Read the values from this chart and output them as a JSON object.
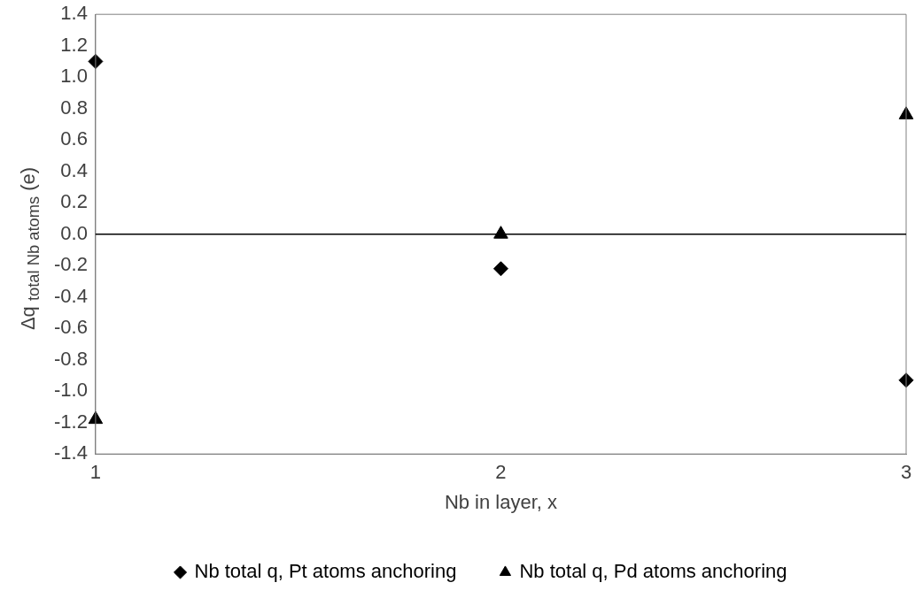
{
  "chart_data": {
    "type": "scatter",
    "xlabel": "Nb in layer, x",
    "ylabel": "Δq $_{total Nb atoms}$ (e)",
    "x": [
      1,
      2,
      3
    ],
    "series": [
      {
        "name": "Nb total q, Pt atoms anchoring",
        "color": "#000000",
        "marker": "diamond",
        "values": [
          1.1,
          -0.22,
          -0.93
        ]
      },
      {
        "name": "Nb total q, Pd atoms anchoring",
        "color": "#000000",
        "marker": "triangle",
        "values": [
          -1.18,
          0.0,
          0.76
        ]
      }
    ],
    "xlim": [
      1,
      3
    ],
    "xticks": [
      1,
      2,
      3
    ],
    "ylim": [
      -1.4,
      1.4
    ],
    "yticks": [
      -1.4,
      -1.2,
      {
        "value": -1,
        "label": "-1.0"
      },
      -0.8,
      -0.6,
      -0.4,
      -0.2,
      {
        "value": 0,
        "label": "0.0"
      },
      0.2,
      0.4,
      0.6,
      0.8,
      {
        "value": 1,
        "label": "1.0"
      },
      1.2,
      1.4
    ],
    "ref_lines": [
      {
        "axis": "y",
        "value": 0,
        "color": "#000000"
      }
    ],
    "grid": false,
    "legend": "bottom"
  }
}
